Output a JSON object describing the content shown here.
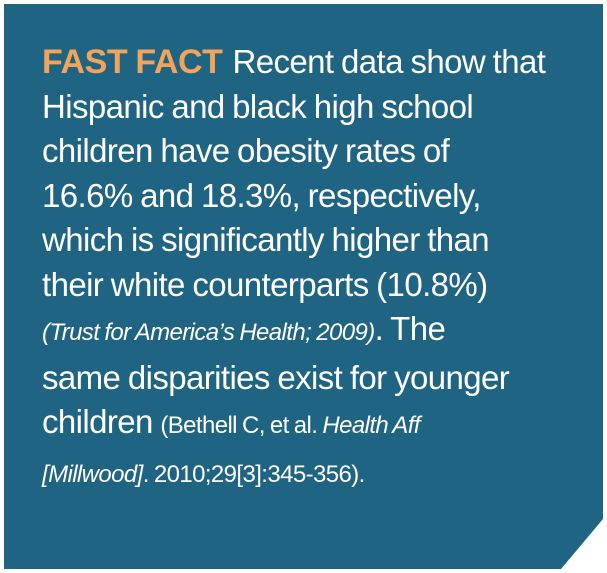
{
  "fact_box": {
    "label": "FAST FACT",
    "lines": [
      "Recent data show that",
      "Hispanic and black high school",
      "children have obesity rates of",
      "16.6% and 18.3%, respectively,",
      "which is significantly higher than",
      "their white counterparts (10.8%)"
    ],
    "citation_1": "(Trust for America’s Health; 2009)",
    "line7_tail": ". The",
    "line8": "same disparities exist for younger",
    "line9_head": "children ",
    "citation_2_part1": "(Bethell C, et al. ",
    "citation_2_journal_1": "Health Aff",
    "citation_2_journal_2": "[Millwood]",
    "citation_2_part2": ". 2010;29[3]:345-356)."
  },
  "colors": {
    "background": "#1f6482",
    "label": "#f2a55a",
    "text": "#ffffff"
  }
}
